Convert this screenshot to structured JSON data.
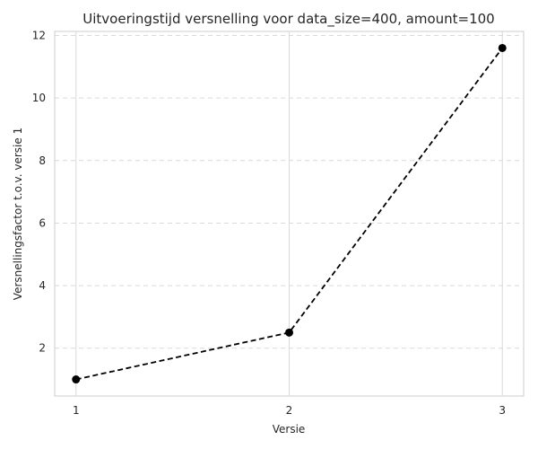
{
  "chart_data": {
    "type": "line",
    "title": "Uitvoeringstijd versnelling voor data_size=400, amount=100",
    "xlabel": "Versie",
    "ylabel": "Versnellingsfactor t.o.v. versie 1",
    "x": [
      1,
      2,
      3
    ],
    "series": [
      {
        "values": [
          1.0,
          2.5,
          11.6
        ],
        "color": "#000000",
        "line_style": "dashed",
        "marker": "circle"
      }
    ],
    "xticks": [
      1,
      2,
      3
    ],
    "yticks": [
      2,
      4,
      6,
      8,
      10,
      12
    ],
    "xlim": [
      0.9,
      3.1
    ],
    "ylim": [
      0.47,
      12.13
    ],
    "grid": {
      "vertical": "solid",
      "horizontal": "dashed",
      "color": "#d9d9d9"
    }
  }
}
